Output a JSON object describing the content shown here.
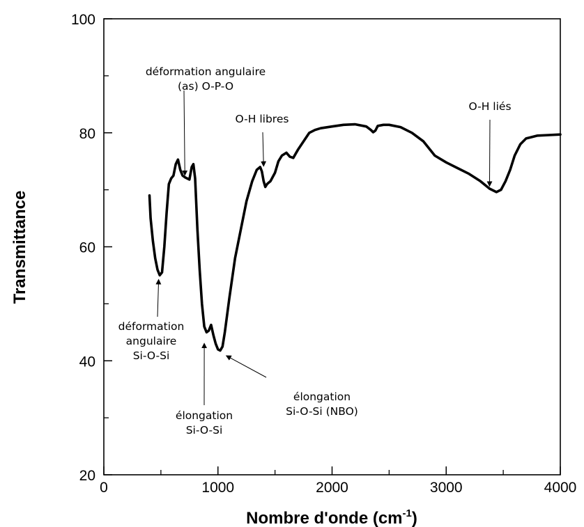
{
  "chart_data": {
    "type": "line",
    "title": "",
    "xlabel": "Nombre d'onde (cm",
    "xlabel_sup": "-1",
    "xlabel_end": ")",
    "ylabel": "Transmittance",
    "xlim": [
      0,
      4000
    ],
    "ylim": [
      20,
      100
    ],
    "x_ticks": [
      0,
      1000,
      2000,
      3000,
      4000
    ],
    "x_minor_ticks": [
      500,
      1500,
      2500,
      3500
    ],
    "y_ticks": [
      20,
      40,
      60,
      80,
      100
    ],
    "y_minor_ticks": [
      30,
      50,
      70,
      90
    ],
    "x_tick_labels": [
      "0",
      "1000",
      "2000",
      "3000",
      "4000"
    ],
    "y_tick_labels": [
      "20",
      "40",
      "60",
      "80",
      "100"
    ],
    "grid": false,
    "legend": "none",
    "line_color": "#000000",
    "series": [
      {
        "points": [
          [
            400,
            69
          ],
          [
            410,
            65
          ],
          [
            430,
            61
          ],
          [
            450,
            58
          ],
          [
            470,
            56
          ],
          [
            490,
            55
          ],
          [
            510,
            55.5
          ],
          [
            530,
            60
          ],
          [
            550,
            66
          ],
          [
            570,
            71
          ],
          [
            590,
            72
          ],
          [
            610,
            72.5
          ],
          [
            630,
            74.5
          ],
          [
            650,
            75.3
          ],
          [
            670,
            73.5
          ],
          [
            690,
            72.5
          ],
          [
            710,
            72.2
          ],
          [
            730,
            72
          ],
          [
            750,
            71.8
          ],
          [
            770,
            74
          ],
          [
            785,
            74.5
          ],
          [
            800,
            72
          ],
          [
            820,
            63
          ],
          [
            840,
            56
          ],
          [
            860,
            50
          ],
          [
            880,
            46
          ],
          [
            900,
            45
          ],
          [
            920,
            45.3
          ],
          [
            940,
            46.3
          ],
          [
            960,
            44.5
          ],
          [
            980,
            43
          ],
          [
            1000,
            42
          ],
          [
            1020,
            41.8
          ],
          [
            1040,
            42.5
          ],
          [
            1060,
            45
          ],
          [
            1100,
            51
          ],
          [
            1150,
            58
          ],
          [
            1200,
            63
          ],
          [
            1250,
            68
          ],
          [
            1300,
            71.5
          ],
          [
            1340,
            73.5
          ],
          [
            1370,
            74
          ],
          [
            1385,
            73.2
          ],
          [
            1400,
            71.5
          ],
          [
            1415,
            70.5
          ],
          [
            1430,
            71
          ],
          [
            1460,
            71.5
          ],
          [
            1500,
            73
          ],
          [
            1530,
            75
          ],
          [
            1560,
            76
          ],
          [
            1600,
            76.5
          ],
          [
            1630,
            75.8
          ],
          [
            1660,
            75.6
          ],
          [
            1700,
            77
          ],
          [
            1750,
            78.5
          ],
          [
            1800,
            80
          ],
          [
            1850,
            80.5
          ],
          [
            1900,
            80.8
          ],
          [
            2000,
            81.1
          ],
          [
            2100,
            81.4
          ],
          [
            2200,
            81.5
          ],
          [
            2300,
            81.1
          ],
          [
            2340,
            80.5
          ],
          [
            2360,
            80.1
          ],
          [
            2380,
            80.4
          ],
          [
            2400,
            81.2
          ],
          [
            2450,
            81.4
          ],
          [
            2500,
            81.4
          ],
          [
            2600,
            81
          ],
          [
            2700,
            80
          ],
          [
            2800,
            78.5
          ],
          [
            2900,
            76
          ],
          [
            3000,
            74.8
          ],
          [
            3100,
            73.8
          ],
          [
            3200,
            72.8
          ],
          [
            3300,
            71.5
          ],
          [
            3380,
            70.2
          ],
          [
            3440,
            69.6
          ],
          [
            3480,
            70
          ],
          [
            3520,
            71.5
          ],
          [
            3560,
            73.5
          ],
          [
            3600,
            76
          ],
          [
            3650,
            78
          ],
          [
            3700,
            79
          ],
          [
            3800,
            79.5
          ],
          [
            3900,
            79.6
          ],
          [
            4000,
            79.7
          ]
        ]
      }
    ],
    "annotations": [
      {
        "id": "ann-def-ang-opo",
        "lines": [
          "déformation angulaire",
          "(as) O-P-O"
        ],
        "x": 710,
        "y": 72.3,
        "arrow": "down"
      },
      {
        "id": "ann-oh-libres",
        "lines": [
          "O-H libres"
        ],
        "x": 1400,
        "y": 73.9,
        "arrow": "down"
      },
      {
        "id": "ann-oh-lies",
        "lines": [
          "O-H liés"
        ],
        "x": 3380,
        "y": 70.4,
        "arrow": "down"
      },
      {
        "id": "ann-def-ang-sios",
        "lines": [
          "déformation",
          "angulaire",
          "Si-O-Si"
        ],
        "x": 480,
        "y": 54.5,
        "arrow": "up"
      },
      {
        "id": "ann-elong-sios",
        "lines": [
          "élongation",
          "Si-O-Si"
        ],
        "x": 880,
        "y": 43.3,
        "arrow": "up"
      },
      {
        "id": "ann-elong-nbo",
        "lines": [
          "élongation",
          "Si-O-Si (NBO)"
        ],
        "x": 1060,
        "y": 41.2,
        "arrow": "up-left"
      }
    ]
  }
}
